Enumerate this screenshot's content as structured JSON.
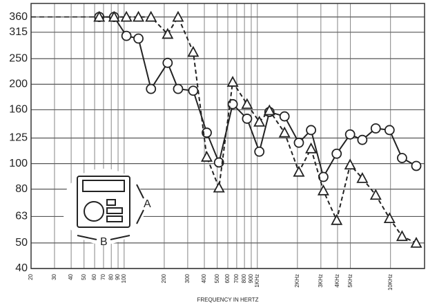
{
  "chart_data": {
    "type": "line",
    "x_label": "FREQUENCY IN HERTZ",
    "x": [
      65,
      84,
      104,
      128,
      159,
      212,
      254,
      330,
      417,
      515,
      653,
      837,
      1035,
      1232,
      1600,
      2050,
      2530,
      3130,
      3940,
      4970,
      6140,
      7740,
      9830,
      12200,
      15600
    ],
    "series": [
      {
        "marker": "circle",
        "line_style": "solid",
        "color": "#222222",
        "values": [
          360,
          360,
          305,
          298,
          192,
          241,
          192,
          189,
          131,
          101,
          168,
          148,
          111,
          157,
          151,
          120,
          134,
          89,
          109,
          129,
          123,
          136,
          134,
          105,
          98
        ]
      },
      {
        "marker": "triangle",
        "line_style": "dashed",
        "color": "#222222",
        "values": [
          360,
          360,
          360,
          360,
          360,
          310,
          360,
          265,
          106,
          81,
          204,
          168,
          144,
          159,
          131,
          93,
          114,
          79,
          61,
          99,
          88,
          76,
          62,
          53,
          50
        ]
      }
    ],
    "xlog": true,
    "ylog": true,
    "xlim": [
      20,
      18000
    ],
    "ylim": [
      40,
      405
    ],
    "xticks": [
      20,
      30,
      40,
      50,
      60,
      70,
      80,
      90,
      100,
      200,
      300,
      400,
      500,
      600,
      700,
      800,
      900,
      {
        "value": 1000,
        "label": "1KHz"
      },
      {
        "value": 2000,
        "label": "2KHz"
      },
      {
        "value": 3000,
        "label": "3KHz"
      },
      {
        "value": 4000,
        "label": "4KHz"
      },
      {
        "value": 5000,
        "label": "5KHz"
      },
      {
        "value": 10000,
        "label": "10KHz"
      }
    ],
    "yticks": [
      40,
      50,
      63,
      80,
      100,
      125,
      160,
      200,
      250,
      315,
      360
    ],
    "grid": true,
    "annotations": [
      "A",
      "B"
    ]
  }
}
